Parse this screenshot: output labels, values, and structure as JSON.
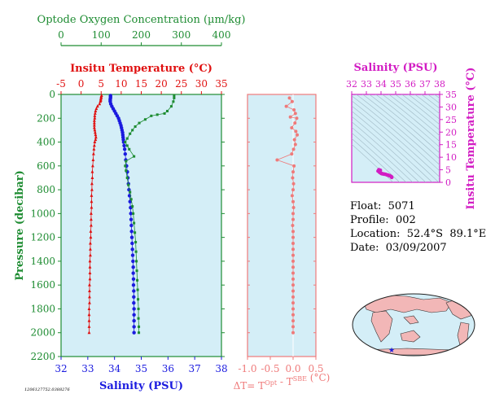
{
  "colors": {
    "temperature": "#e01010",
    "salinity": "#1a1adf",
    "oxygen": "#1e8c32",
    "delta": "#ef7a7a",
    "ts": "#d21cc3",
    "panel_bg": "#d4eef7",
    "land": "#f2b7b7",
    "ocean": "#d4eef7"
  },
  "info": {
    "float_label": "Float:",
    "float_value": "5071",
    "profile_label": "Profile:",
    "profile_value": "002",
    "location_label": "Location:",
    "location_value": "52.4°S  89.1°E",
    "date_label": "Date:",
    "date_value": "03/09/2007"
  },
  "footnote": "1206127752.0388276",
  "chart_data": [
    {
      "type": "scatter",
      "name": "main-profile",
      "ylabel": "Pressure (decibar)",
      "ylim": [
        2200,
        0
      ],
      "yticks": [
        0,
        200,
        400,
        600,
        800,
        1000,
        1200,
        1400,
        1600,
        1800,
        2000,
        2200
      ],
      "grid": false,
      "axes": {
        "oxygen": {
          "label": "Optode Oxygen Concentration (µm/kg)",
          "range": [
            0,
            400
          ],
          "ticks": [
            0,
            100,
            200,
            300,
            400
          ]
        },
        "temperature": {
          "label": "Insitu Temperature (°C)",
          "range": [
            -5,
            35
          ],
          "ticks": [
            -5,
            0,
            5,
            10,
            15,
            20,
            25,
            30,
            35
          ]
        },
        "salinity": {
          "label": "Salinity (PSU)",
          "range": [
            32,
            38
          ],
          "ticks": [
            32,
            33,
            34,
            35,
            36,
            37,
            38
          ]
        }
      },
      "series": [
        {
          "key": "temperature",
          "marker": "triangle",
          "points": [
            [
              5.1,
              10
            ],
            [
              5.0,
              20
            ],
            [
              5.0,
              30
            ],
            [
              4.9,
              40
            ],
            [
              4.9,
              50
            ],
            [
              4.8,
              60
            ],
            [
              4.6,
              80
            ],
            [
              4.1,
              100
            ],
            [
              3.8,
              120
            ],
            [
              3.6,
              140
            ],
            [
              3.5,
              160
            ],
            [
              3.4,
              180
            ],
            [
              3.4,
              200
            ],
            [
              3.3,
              220
            ],
            [
              3.3,
              240
            ],
            [
              3.3,
              260
            ],
            [
              3.3,
              280
            ],
            [
              3.4,
              300
            ],
            [
              3.5,
              320
            ],
            [
              3.6,
              340
            ],
            [
              3.7,
              360
            ],
            [
              3.6,
              380
            ],
            [
              3.4,
              400
            ],
            [
              3.3,
              430
            ],
            [
              3.2,
              460
            ],
            [
              3.1,
              500
            ],
            [
              3.0,
              550
            ],
            [
              2.9,
              600
            ],
            [
              2.8,
              650
            ],
            [
              2.8,
              700
            ],
            [
              2.7,
              750
            ],
            [
              2.7,
              800
            ],
            [
              2.6,
              850
            ],
            [
              2.6,
              900
            ],
            [
              2.6,
              950
            ],
            [
              2.5,
              1000
            ],
            [
              2.5,
              1050
            ],
            [
              2.5,
              1100
            ],
            [
              2.4,
              1150
            ],
            [
              2.4,
              1200
            ],
            [
              2.3,
              1250
            ],
            [
              2.3,
              1300
            ],
            [
              2.3,
              1350
            ],
            [
              2.2,
              1400
            ],
            [
              2.2,
              1450
            ],
            [
              2.2,
              1500
            ],
            [
              2.2,
              1550
            ],
            [
              2.1,
              1600
            ],
            [
              2.1,
              1650
            ],
            [
              2.1,
              1700
            ],
            [
              2.1,
              1750
            ],
            [
              2.0,
              1800
            ],
            [
              2.0,
              1850
            ],
            [
              2.0,
              1900
            ],
            [
              2.0,
              1950
            ],
            [
              2.0,
              2000
            ]
          ]
        },
        {
          "key": "salinity",
          "marker": "circle",
          "points": [
            [
              33.85,
              10
            ],
            [
              33.85,
              20
            ],
            [
              33.85,
              30
            ],
            [
              33.84,
              40
            ],
            [
              33.84,
              50
            ],
            [
              33.84,
              60
            ],
            [
              33.86,
              80
            ],
            [
              33.9,
              100
            ],
            [
              33.95,
              120
            ],
            [
              34.0,
              140
            ],
            [
              34.05,
              160
            ],
            [
              34.1,
              180
            ],
            [
              34.15,
              200
            ],
            [
              34.18,
              220
            ],
            [
              34.21,
              240
            ],
            [
              34.24,
              260
            ],
            [
              34.26,
              280
            ],
            [
              34.28,
              300
            ],
            [
              34.3,
              320
            ],
            [
              34.31,
              340
            ],
            [
              34.32,
              360
            ],
            [
              34.33,
              380
            ],
            [
              34.34,
              400
            ],
            [
              34.36,
              430
            ],
            [
              34.38,
              460
            ],
            [
              34.4,
              500
            ],
            [
              34.42,
              550
            ],
            [
              34.45,
              600
            ],
            [
              34.48,
              650
            ],
            [
              34.5,
              700
            ],
            [
              34.52,
              750
            ],
            [
              34.54,
              800
            ],
            [
              34.56,
              850
            ],
            [
              34.58,
              900
            ],
            [
              34.6,
              950
            ],
            [
              34.61,
              1000
            ],
            [
              34.62,
              1050
            ],
            [
              34.63,
              1100
            ],
            [
              34.64,
              1150
            ],
            [
              34.65,
              1200
            ],
            [
              34.66,
              1250
            ],
            [
              34.67,
              1300
            ],
            [
              34.68,
              1350
            ],
            [
              34.69,
              1400
            ],
            [
              34.7,
              1450
            ],
            [
              34.7,
              1500
            ],
            [
              34.71,
              1550
            ],
            [
              34.71,
              1600
            ],
            [
              34.72,
              1650
            ],
            [
              34.72,
              1700
            ],
            [
              34.72,
              1750
            ],
            [
              34.73,
              1800
            ],
            [
              34.73,
              1850
            ],
            [
              34.73,
              1900
            ],
            [
              34.73,
              1950
            ],
            [
              34.73,
              2000
            ]
          ]
        },
        {
          "key": "oxygen",
          "marker": "square",
          "points": [
            [
              282,
              10
            ],
            [
              282,
              30
            ],
            [
              280,
              60
            ],
            [
              275,
              100
            ],
            [
              265,
              140
            ],
            [
              258,
              160
            ],
            [
              240,
              170
            ],
            [
              225,
              180
            ],
            [
              210,
              210
            ],
            [
              195,
              240
            ],
            [
              185,
              270
            ],
            [
              178,
              300
            ],
            [
              172,
              330
            ],
            [
              165,
              370
            ],
            [
              160,
              400
            ],
            [
              165,
              430
            ],
            [
              170,
              460
            ],
            [
              182,
              520
            ],
            [
              162,
              560
            ],
            [
              160,
              600
            ],
            [
              162,
              640
            ],
            [
              165,
              700
            ],
            [
              168,
              760
            ],
            [
              172,
              820
            ],
            [
              175,
              880
            ],
            [
              178,
              940
            ],
            [
              180,
              1000
            ],
            [
              182,
              1080
            ],
            [
              184,
              1160
            ],
            [
              186,
              1240
            ],
            [
              187,
              1320
            ],
            [
              188,
              1400
            ],
            [
              189,
              1480
            ],
            [
              190,
              1560
            ],
            [
              191,
              1640
            ],
            [
              192,
              1720
            ],
            [
              193,
              1800
            ],
            [
              193,
              1880
            ],
            [
              194,
              1950
            ],
            [
              194,
              2000
            ]
          ]
        }
      ]
    },
    {
      "type": "scatter",
      "name": "delta-t",
      "xlabel": "ΔT= T",
      "xlabel_sup1": "Opt",
      "xlabel_mid": " - T",
      "xlabel_sup2": "SBE",
      "xlabel_end": " (°C)",
      "xlim": [
        -1.0,
        0.5
      ],
      "xticks": [
        -1.0,
        -0.5,
        0.0,
        0.5
      ],
      "xtick_labels": [
        "-1.0",
        "-0.5",
        "0.0",
        "0.5"
      ],
      "ylim": [
        2200,
        0
      ],
      "points": [
        [
          -0.08,
          30
        ],
        [
          -0.02,
          60
        ],
        [
          -0.15,
          100
        ],
        [
          0.02,
          130
        ],
        [
          0.05,
          160
        ],
        [
          -0.06,
          190
        ],
        [
          0.08,
          200
        ],
        [
          0.04,
          240
        ],
        [
          -0.03,
          280
        ],
        [
          0.06,
          310
        ],
        [
          0.09,
          340
        ],
        [
          0.03,
          380
        ],
        [
          0.05,
          420
        ],
        [
          0.01,
          460
        ],
        [
          -0.03,
          500
        ],
        [
          -0.35,
          550
        ],
        [
          0.02,
          600
        ],
        [
          0.0,
          650
        ],
        [
          -0.01,
          700
        ],
        [
          0.01,
          750
        ],
        [
          0.0,
          800
        ],
        [
          -0.02,
          850
        ],
        [
          0.0,
          900
        ],
        [
          0.01,
          950
        ],
        [
          0.0,
          1000
        ],
        [
          0.0,
          1050
        ],
        [
          -0.01,
          1100
        ],
        [
          0.0,
          1150
        ],
        [
          0.0,
          1200
        ],
        [
          0.0,
          1250
        ],
        [
          0.0,
          1300
        ],
        [
          0.0,
          1350
        ],
        [
          0.0,
          1400
        ],
        [
          0.0,
          1450
        ],
        [
          0.0,
          1500
        ],
        [
          0.0,
          1550
        ],
        [
          0.0,
          1600
        ],
        [
          0.0,
          1650
        ],
        [
          0.0,
          1700
        ],
        [
          0.0,
          1750
        ],
        [
          0.0,
          1800
        ],
        [
          0.0,
          1850
        ],
        [
          0.0,
          1900
        ],
        [
          0.0,
          1950
        ],
        [
          0.0,
          2000
        ]
      ]
    },
    {
      "type": "scatter",
      "name": "ts-diagram",
      "xlabel": "Salinity (PSU)",
      "ylabel": "Insitu Temperature (°C)",
      "xlim": [
        32,
        38
      ],
      "ylim": [
        0,
        35
      ],
      "xticks": [
        32,
        33,
        34,
        35,
        36,
        37,
        38
      ],
      "yticks": [
        0,
        5,
        10,
        15,
        20,
        25,
        30,
        35
      ],
      "points": [
        [
          33.85,
          5.0
        ],
        [
          33.8,
          4.5
        ],
        [
          33.9,
          4.0
        ],
        [
          34.0,
          3.6
        ],
        [
          34.1,
          3.4
        ],
        [
          34.2,
          3.3
        ],
        [
          34.3,
          3.2
        ],
        [
          34.4,
          3.0
        ],
        [
          34.5,
          2.8
        ],
        [
          34.6,
          2.6
        ],
        [
          34.7,
          2.3
        ],
        [
          34.73,
          2.0
        ],
        [
          33.95,
          4.8
        ],
        [
          34.05,
          3.5
        ]
      ]
    }
  ]
}
